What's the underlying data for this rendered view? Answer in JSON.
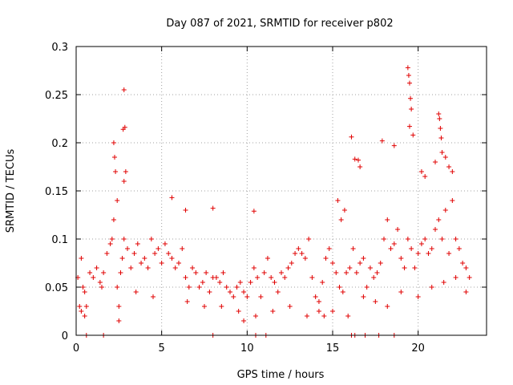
{
  "chart_data": {
    "type": "scatter",
    "title": "Day 087 of 2021, SRMTID for receiver p802",
    "xlabel": "GPS time / hours",
    "ylabel": "SRMTID / TECUs",
    "xlim": [
      0,
      24
    ],
    "ylim": [
      0,
      0.3
    ],
    "xticks": [
      0,
      5,
      10,
      15,
      20
    ],
    "yticks": [
      0,
      0.05,
      0.1,
      0.15,
      0.2,
      0.25,
      0.3
    ],
    "xtick_labels": [
      "0",
      "5",
      "10",
      "15",
      "20"
    ],
    "ytick_labels": [
      "0",
      "0.05",
      "0.1",
      "0.15",
      "0.2",
      "0.25",
      "0.3"
    ],
    "grid": true,
    "marker": "+",
    "color": "#e00000",
    "series": [
      {
        "name": "SRMTID",
        "x": [
          0.1,
          0.2,
          0.3,
          0.4,
          0.5,
          0.6,
          0.8,
          1.0,
          1.2,
          1.4,
          1.6,
          1.8,
          2.0,
          2.1,
          2.2,
          2.4,
          2.6,
          2.7,
          2.8,
          3.0,
          3.2,
          3.4,
          3.6,
          3.8,
          4.0,
          4.2,
          4.4,
          4.6,
          4.8,
          5.0,
          5.2,
          5.4,
          5.6,
          5.8,
          6.0,
          6.2,
          6.4,
          6.6,
          6.8,
          7.0,
          7.2,
          7.4,
          7.6,
          7.8,
          8.0,
          8.2,
          8.4,
          8.6,
          8.8,
          9.0,
          9.2,
          9.4,
          9.6,
          9.8,
          10.0,
          10.2,
          10.4,
          10.6,
          10.8,
          11.0,
          11.2,
          11.4,
          11.6,
          11.8,
          12.0,
          12.2,
          12.4,
          12.6,
          12.8,
          13.0,
          13.2,
          13.4,
          13.6,
          13.8,
          14.0,
          14.2,
          14.4,
          14.6,
          14.8,
          15.0,
          15.2,
          15.4,
          15.6,
          15.8,
          16.0,
          16.2,
          16.4,
          16.6,
          16.8,
          17.0,
          17.2,
          17.4,
          17.6,
          17.8,
          18.0,
          18.2,
          18.4,
          18.6,
          18.8,
          19.0,
          19.2,
          19.4,
          19.6,
          19.8,
          20.0,
          20.2,
          20.4,
          20.6,
          20.8,
          21.0,
          21.2,
          21.4,
          21.6,
          21.8,
          22.0,
          22.2,
          22.4,
          22.6,
          22.8,
          2.8,
          2.85,
          2.75,
          2.9,
          2.8,
          2.2,
          2.25,
          2.3,
          2.4,
          5.6,
          6.4,
          8.0,
          10.4,
          15.3,
          15.5,
          15.7,
          16.1,
          16.3,
          16.5,
          16.6,
          17.9,
          18.6,
          19.4,
          19.45,
          19.5,
          19.55,
          19.6,
          19.5,
          19.7,
          21.2,
          21.25,
          21.3,
          21.35,
          21.4,
          21.6,
          21.8,
          22.0,
          20.4,
          20.2,
          21.0,
          0.3,
          0.5,
          1.5,
          2.5,
          2.5,
          3.5,
          4.5,
          6.5,
          7.5,
          8.5,
          9.5,
          9.8,
          10.5,
          11.5,
          12.5,
          13.5,
          14.2,
          14.5,
          15.0,
          15.9,
          16.8,
          17.5,
          18.2,
          19.0,
          20.0,
          20.8,
          21.5,
          22.2,
          22.8,
          23.0
        ],
        "y": [
          0.06,
          0.03,
          0.08,
          0.05,
          0.045,
          0.03,
          0.065,
          0.06,
          0.07,
          0.055,
          0.065,
          0.085,
          0.095,
          0.1,
          0.12,
          0.05,
          0.065,
          0.08,
          0.1,
          0.09,
          0.07,
          0.085,
          0.095,
          0.075,
          0.08,
          0.07,
          0.1,
          0.085,
          0.09,
          0.075,
          0.095,
          0.085,
          0.08,
          0.07,
          0.075,
          0.09,
          0.06,
          0.05,
          0.07,
          0.065,
          0.05,
          0.055,
          0.065,
          0.045,
          0.06,
          0.06,
          0.055,
          0.065,
          0.05,
          0.045,
          0.04,
          0.05,
          0.055,
          0.045,
          0.04,
          0.055,
          0.07,
          0.06,
          0.04,
          0.065,
          0.08,
          0.06,
          0.055,
          0.045,
          0.065,
          0.06,
          0.07,
          0.075,
          0.085,
          0.09,
          0.085,
          0.08,
          0.1,
          0.06,
          0.04,
          0.035,
          0.055,
          0.08,
          0.09,
          0.075,
          0.065,
          0.05,
          0.045,
          0.065,
          0.07,
          0.09,
          0.065,
          0.075,
          0.08,
          0.05,
          0.07,
          0.06,
          0.065,
          0.075,
          0.1,
          0.12,
          0.09,
          0.095,
          0.11,
          0.08,
          0.07,
          0.1,
          0.09,
          0.07,
          0.085,
          0.095,
          0.1,
          0.085,
          0.09,
          0.11,
          0.12,
          0.1,
          0.13,
          0.085,
          0.14,
          0.1,
          0.09,
          0.075,
          0.07,
          0.255,
          0.216,
          0.214,
          0.17,
          0.16,
          0.2,
          0.185,
          0.17,
          0.14,
          0.143,
          0.13,
          0.132,
          0.129,
          0.14,
          0.12,
          0.13,
          0.206,
          0.183,
          0.182,
          0.175,
          0.202,
          0.197,
          0.278,
          0.27,
          0.262,
          0.246,
          0.235,
          0.217,
          0.208,
          0.23,
          0.225,
          0.215,
          0.205,
          0.19,
          0.185,
          0.175,
          0.17,
          0.165,
          0.17,
          0.18,
          0.025,
          0.02,
          0.05,
          0.03,
          0.015,
          0.045,
          0.04,
          0.035,
          0.03,
          0.03,
          0.025,
          0.015,
          0.02,
          0.025,
          0.03,
          0.02,
          0.025,
          0.02,
          0.025,
          0.02,
          0.04,
          0.035,
          0.03,
          0.045,
          0.04,
          0.05,
          0.055,
          0.06,
          0.045,
          0.06
        ],
        "zero_x": [
          0.6,
          1.6,
          8.0,
          10.5,
          11.1,
          16.1,
          16.3,
          16.9,
          17.7,
          18.6
        ]
      }
    ]
  }
}
